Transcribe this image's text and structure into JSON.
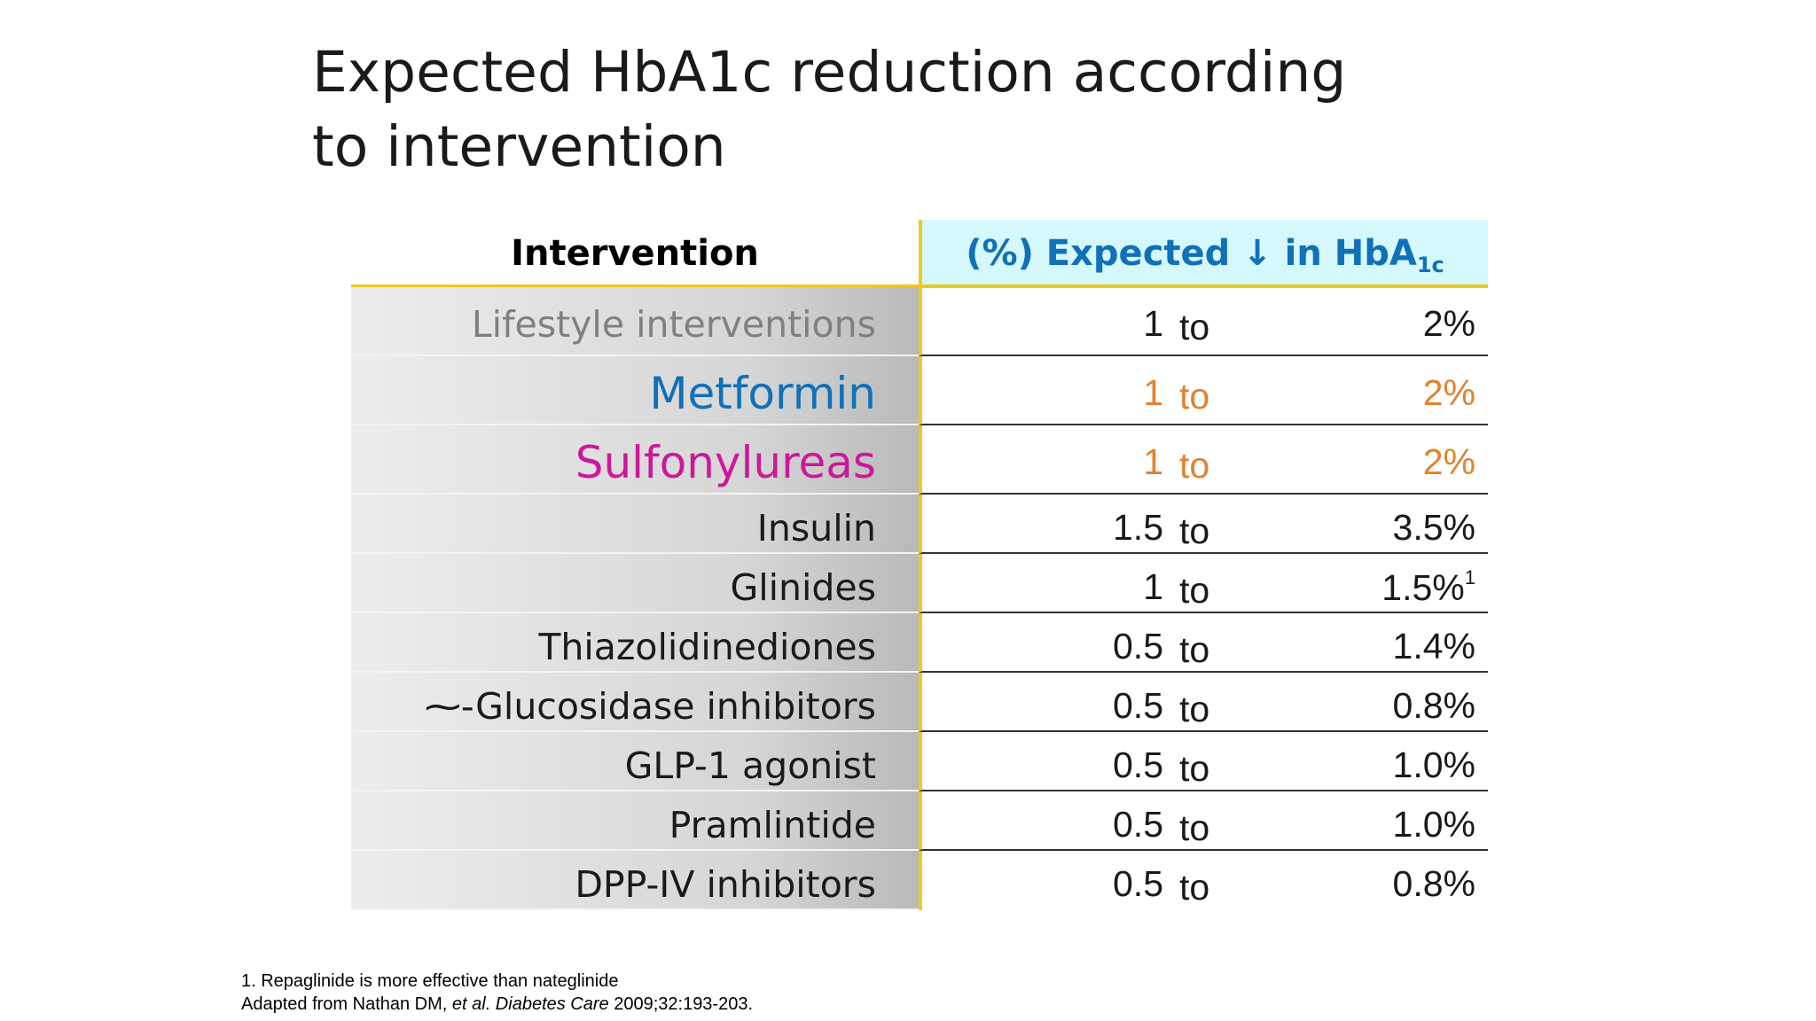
{
  "title": {
    "line1": "Expected HbA1c reduction according",
    "line2": "to intervention"
  },
  "table": {
    "header_left": "Intervention",
    "header_right_main": "(%) Expected ↓ in HbA",
    "header_right_sub": "1c",
    "to_word": "to",
    "colors": {
      "header_accent": "#1070b8",
      "header_bg": "#d4f8fb",
      "divider_yellow": "#f2c81a",
      "orange": "#e2822f",
      "blue": "#1070b8",
      "magenta": "#cc1899",
      "grey": "#808080",
      "black": "#1a1a1a"
    },
    "rows": [
      {
        "name": "Lifestyle interventions",
        "from": "1",
        "to": "2%",
        "name_color": "#808080",
        "value_color": "#1a1a1a"
      },
      {
        "name": "Metformin",
        "from": "1",
        "to": "2%",
        "name_color": "#1070b8",
        "value_color": "#e2822f"
      },
      {
        "name": "Sulfonylureas",
        "from": "1",
        "to": "2%",
        "name_color": "#cc1899",
        "value_color": "#e2822f"
      },
      {
        "name": "Insulin",
        "from": "1.5",
        "to": "3.5%",
        "name_color": "#1a1a1a",
        "value_color": "#1a1a1a"
      },
      {
        "name": "Glinides",
        "from": "1",
        "to": "1.5%",
        "sup": "1",
        "name_color": "#1a1a1a",
        "value_color": "#1a1a1a"
      },
      {
        "name": "Thiazolidinediones",
        "from": "0.5",
        "to": "1.4%",
        "name_color": "#1a1a1a",
        "value_color": "#1a1a1a"
      },
      {
        "name": "⁓-Glucosidase inhibitors",
        "from": "0.5",
        "to": "0.8%",
        "name_color": "#1a1a1a",
        "value_color": "#1a1a1a"
      },
      {
        "name": "GLP-1 agonist",
        "from": "0.5",
        "to": "1.0%",
        "name_color": "#1a1a1a",
        "value_color": "#1a1a1a"
      },
      {
        "name": "Pramlintide",
        "from": "0.5",
        "to": "1.0%",
        "name_color": "#1a1a1a",
        "value_color": "#1a1a1a"
      },
      {
        "name": "DPP-IV inhibitors",
        "from": "0.5",
        "to": "0.8%",
        "name_color": "#1a1a1a",
        "value_color": "#1a1a1a"
      }
    ]
  },
  "footnotes": {
    "note1": "1. Repaglinide is more effective than nateglinide",
    "source_prefix": "Adapted from Nathan DM, ",
    "source_italic": "et al. Diabetes Care",
    "source_suffix": " 2009;32:193-203."
  }
}
